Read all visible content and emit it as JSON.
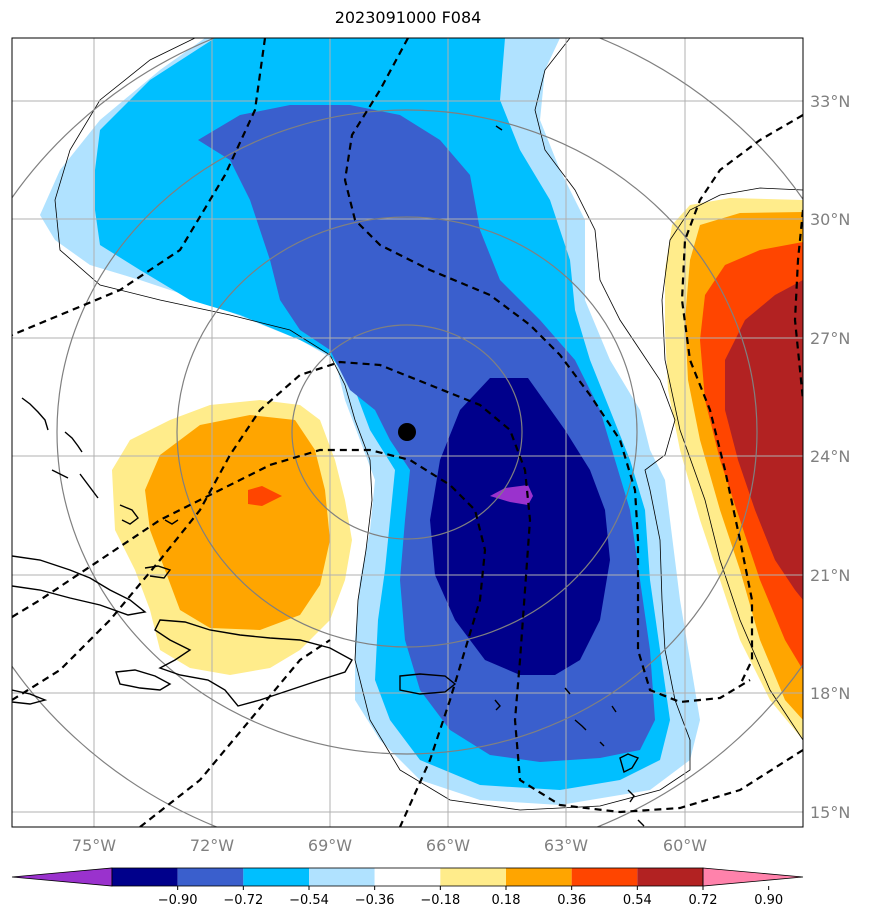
{
  "title": "2023091000 F084",
  "lat_labels": [
    "33°N",
    "30°N",
    "27°N",
    "24°N",
    "21°N",
    "18°N",
    "15°N"
  ],
  "lon_labels": [
    "75°W",
    "72°W",
    "69°W",
    "66°W",
    "63°W",
    "60°W"
  ],
  "colorbar": {
    "labels": [
      "−0.90",
      "−0.72",
      "−0.54",
      "−0.36",
      "−0.18",
      "0.18",
      "0.36",
      "0.54",
      "0.72",
      "0.90"
    ],
    "colors": [
      "#9a32cd",
      "#00008b",
      "#3a5fcd",
      "#00bfff",
      "#b0e2ff",
      "#ffffff",
      "#ffec8b",
      "#ffa500",
      "#ff4500",
      "#b22222",
      "#ff82ab"
    ]
  },
  "colors": {
    "contour_dark_blue": "#00008b",
    "contour_medium_blue": "#3a5fcd",
    "contour_cyan": "#00bfff",
    "contour_light_blue": "#b0e2ff",
    "contour_yellow": "#ffec8b",
    "contour_orange": "#ffa500",
    "contour_red_orange": "#ff4500",
    "contour_dark_red": "#b22222",
    "contour_purple": "#9a32cd",
    "grid": "#b0b0b0",
    "range_rings": "#808080"
  },
  "storm_center": {
    "lat": 24.6,
    "lon": -67.1
  }
}
